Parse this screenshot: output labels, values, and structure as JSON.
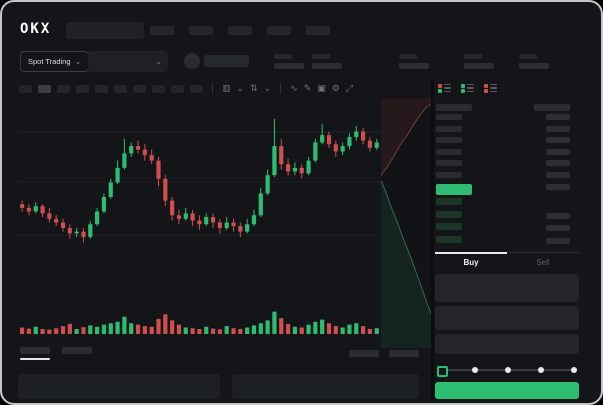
{
  "window": {
    "brand_logo": "OKX"
  },
  "nav": {
    "item_count": 5
  },
  "market_bar": {
    "market_type": {
      "label": "Spot Trading",
      "chevron": "⌄"
    },
    "pair_dropdown": {
      "chevron": "⌄"
    },
    "ticker_stat_count": 5
  },
  "chart_toolbar": {
    "timeframes": {
      "count": 10,
      "active_index": 1
    },
    "icons": [
      {
        "name": "candle-style-icon",
        "glyph": "▥"
      },
      {
        "name": "chevron-down-icon",
        "glyph": "⌄"
      },
      {
        "name": "compare-icon",
        "glyph": "⇅"
      },
      {
        "name": "chevron-down-icon",
        "glyph": "⌄"
      },
      {
        "name": "indicator-icon",
        "glyph": "∿"
      },
      {
        "name": "draw-icon",
        "glyph": "✎"
      },
      {
        "name": "camera-icon",
        "glyph": "▣"
      },
      {
        "name": "settings-icon",
        "glyph": "⚙"
      },
      {
        "name": "fullscreen-icon",
        "glyph": "⤢"
      }
    ]
  },
  "order_book": {
    "view_modes": [
      {
        "name": "book-combined-icon",
        "top": "#cf4f4f",
        "bottom": "#2ebd70"
      },
      {
        "name": "book-bids-icon",
        "top": "#2ebd70",
        "bottom": "#2ebd70"
      },
      {
        "name": "book-asks-icon",
        "top": "#cf4f4f",
        "bottom": "#cf4f4f"
      }
    ],
    "ask_row_count": 7,
    "bid_row_count": 4,
    "last_price_highlight": "#2ebd70"
  },
  "trade_panel": {
    "tabs": {
      "buy": "Buy",
      "sell": "Sell",
      "active": "buy"
    },
    "field_count": 3,
    "slider": {
      "steps": 5,
      "active_step": 0
    },
    "buy_button_label": ""
  },
  "bottom_bar": {
    "tab_count": 2,
    "active_tab_index": 0,
    "right_button_count": 2
  },
  "colors": {
    "up": "#2ebd70",
    "down": "#cf4f4f",
    "bg": "#141518",
    "panel": "#1d2023",
    "bar": "#2a2d30",
    "grid": "#1e2124",
    "bid_bar": "#1b3627",
    "text": "#d7dadd",
    "dim": "#596069"
  },
  "chart_data": {
    "type": "candlestick",
    "title": "",
    "xlabel": "",
    "ylabel": "",
    "price_scale": [
      0,
      100
    ],
    "grid": true,
    "candles_ohlc": [
      [
        46,
        48,
        42,
        44
      ],
      [
        44,
        46,
        40,
        42
      ],
      [
        42,
        47,
        41,
        45
      ],
      [
        45,
        46,
        39,
        41
      ],
      [
        41,
        44,
        36,
        38
      ],
      [
        38,
        40,
        34,
        36
      ],
      [
        36,
        38,
        31,
        33
      ],
      [
        33,
        35,
        27,
        30
      ],
      [
        30,
        33,
        28,
        31
      ],
      [
        31,
        33,
        25,
        28
      ],
      [
        28,
        37,
        27,
        35
      ],
      [
        35,
        44,
        34,
        42
      ],
      [
        42,
        52,
        41,
        50
      ],
      [
        50,
        60,
        49,
        58
      ],
      [
        58,
        70,
        57,
        66
      ],
      [
        66,
        82,
        65,
        74
      ],
      [
        74,
        80,
        72,
        78
      ],
      [
        78,
        81,
        74,
        76
      ],
      [
        76,
        79,
        70,
        73
      ],
      [
        73,
        76,
        68,
        70
      ],
      [
        70,
        72,
        56,
        60
      ],
      [
        60,
        62,
        45,
        48
      ],
      [
        48,
        50,
        37,
        40
      ],
      [
        40,
        43,
        35,
        38
      ],
      [
        38,
        44,
        37,
        41
      ],
      [
        41,
        43,
        34,
        37
      ],
      [
        37,
        40,
        32,
        35
      ],
      [
        35,
        41,
        34,
        39
      ],
      [
        39,
        41,
        33,
        36
      ],
      [
        36,
        38,
        30,
        33
      ],
      [
        33,
        39,
        32,
        36
      ],
      [
        36,
        38,
        31,
        34
      ],
      [
        34,
        36,
        28,
        31
      ],
      [
        31,
        38,
        30,
        35
      ],
      [
        35,
        43,
        34,
        40
      ],
      [
        40,
        55,
        39,
        52
      ],
      [
        52,
        65,
        51,
        62
      ],
      [
        62,
        93,
        61,
        78
      ],
      [
        78,
        82,
        65,
        68
      ],
      [
        68,
        71,
        62,
        64
      ],
      [
        64,
        69,
        62,
        66
      ],
      [
        66,
        68,
        60,
        63
      ],
      [
        63,
        72,
        62,
        70
      ],
      [
        70,
        82,
        69,
        80
      ],
      [
        80,
        90,
        79,
        84
      ],
      [
        84,
        86,
        77,
        79
      ],
      [
        79,
        81,
        72,
        75
      ],
      [
        75,
        80,
        73,
        78
      ],
      [
        78,
        85,
        76,
        83
      ],
      [
        83,
        89,
        81,
        86
      ],
      [
        86,
        88,
        79,
        81
      ],
      [
        81,
        83,
        75,
        77
      ],
      [
        77,
        82,
        76,
        80
      ]
    ],
    "volumes": [
      18,
      15,
      20,
      14,
      12,
      16,
      22,
      28,
      14,
      19,
      24,
      20,
      26,
      30,
      34,
      48,
      30,
      26,
      22,
      20,
      42,
      55,
      38,
      26,
      18,
      16,
      14,
      20,
      15,
      13,
      22,
      16,
      14,
      18,
      24,
      30,
      38,
      62,
      44,
      28,
      20,
      18,
      26,
      34,
      40,
      30,
      22,
      18,
      26,
      30,
      22,
      14,
      16
    ],
    "depth": {
      "type": "area",
      "asks_curve": [
        [
          0,
          0.31
        ],
        [
          0.12,
          0.275
        ],
        [
          0.24,
          0.235
        ],
        [
          0.36,
          0.19
        ],
        [
          0.5,
          0.15
        ],
        [
          0.63,
          0.105
        ],
        [
          0.76,
          0.065
        ],
        [
          0.88,
          0.035
        ],
        [
          1,
          0.02
        ]
      ],
      "bids_curve": [
        [
          0,
          0.33
        ],
        [
          0.1,
          0.38
        ],
        [
          0.2,
          0.44
        ],
        [
          0.32,
          0.5
        ],
        [
          0.44,
          0.57
        ],
        [
          0.56,
          0.63
        ],
        [
          0.68,
          0.7
        ],
        [
          0.8,
          0.77
        ],
        [
          0.9,
          0.83
        ],
        [
          1,
          0.88
        ]
      ]
    }
  }
}
